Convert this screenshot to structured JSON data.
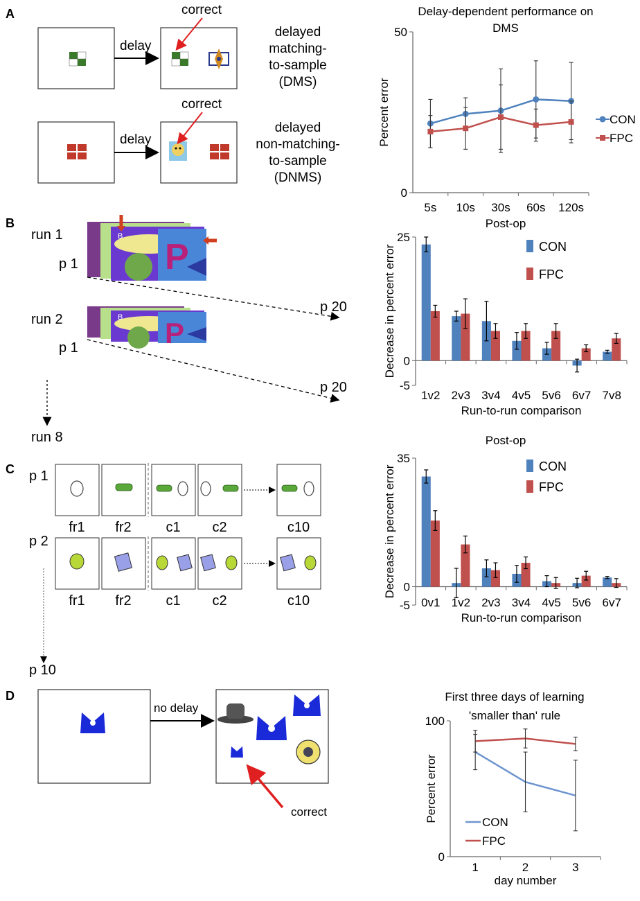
{
  "panel_labels": [
    "A",
    "B",
    "C",
    "D"
  ],
  "panelA": {
    "delay_label": "delay",
    "correct_label": "correct",
    "task1": [
      "delayed",
      "matching-",
      "to-sample",
      "(DMS)"
    ],
    "task2": [
      "delayed",
      "non-matching-",
      "to-sample",
      "(DNMS)"
    ]
  },
  "panelB": {
    "run1": "run 1",
    "run2": "run 2",
    "p1": "p 1",
    "p20": "p 20",
    "run8": "run 8",
    "card_letter": "B",
    "big_letter": "P"
  },
  "panelC": {
    "p1": "p 1",
    "p2": "p 2",
    "p10": "p 10",
    "frames": [
      "fr1",
      "fr2",
      "c1",
      "c2",
      "c10"
    ]
  },
  "panelD": {
    "no_delay": "no delay",
    "correct_label": "correct"
  },
  "colors": {
    "con": "#4f81bd",
    "fpc": "#c0504d",
    "con_light": "#6e95cf",
    "arrow_red": "#e02020"
  },
  "chart_data": [
    {
      "id": "dms",
      "type": "line",
      "title_lines": [
        "Delay-dependent performance on",
        "DMS"
      ],
      "categories": [
        "5s",
        "10s",
        "30s",
        "60s",
        "120s"
      ],
      "ylabel": "Percent error",
      "xlabel": "",
      "ylim": [
        0,
        50
      ],
      "yticks": [
        "0",
        "50"
      ],
      "series": [
        {
          "name": "CON",
          "values": [
            21.5,
            24.5,
            25.5,
            29,
            28.5
          ],
          "err": [
            7.5,
            5,
            13,
            12,
            12
          ]
        },
        {
          "name": "FPC",
          "values": [
            19,
            20,
            23.5,
            21,
            22
          ],
          "err": [
            5,
            6.5,
            10,
            5,
            6.5
          ]
        }
      ],
      "legend": "right"
    },
    {
      "id": "b",
      "type": "bar",
      "title_lines": [
        "Post-op"
      ],
      "categories": [
        "1v2",
        "2v3",
        "3v4",
        "4v5",
        "5v6",
        "6v7",
        "7v8"
      ],
      "ylabel": "Decrease in percent error",
      "xlabel": "Run-to-run comparison",
      "ylim": [
        -5,
        25
      ],
      "yticks": [
        "-5",
        "0",
        "25"
      ],
      "series": [
        {
          "name": "CON",
          "values": [
            23.5,
            9,
            8,
            4,
            2.5,
            -1,
            1.8
          ],
          "err": [
            1.5,
            1,
            4,
            1.7,
            1.2,
            1.3,
            0.3
          ]
        },
        {
          "name": "FPC",
          "values": [
            10,
            9.5,
            6,
            6,
            6,
            2.5,
            4.5
          ],
          "err": [
            1.2,
            3,
            1.5,
            1.5,
            1.5,
            0.7,
            1
          ]
        }
      ],
      "legend": "top-right"
    },
    {
      "id": "c",
      "type": "bar",
      "title_lines": [
        "Post-op"
      ],
      "categories": [
        "0v1",
        "1v2",
        "2v3",
        "3v4",
        "4v5",
        "5v6",
        "6v7"
      ],
      "ylabel": "Decrease in percent error",
      "xlabel": "Run-to-run comparison",
      "ylim": [
        -5,
        35
      ],
      "yticks": [
        "-5",
        "0",
        "35"
      ],
      "series": [
        {
          "name": "CON",
          "values": [
            30,
            1,
            5,
            3.5,
            1.5,
            1,
            2.5
          ],
          "err": [
            1.8,
            4,
            2.3,
            2.3,
            1.5,
            1.3,
            0.3
          ]
        },
        {
          "name": "FPC",
          "values": [
            18,
            11.5,
            4.5,
            6.5,
            1,
            3,
            1
          ],
          "err": [
            2.7,
            2.3,
            2,
            1.6,
            1.5,
            1.2,
            1.2
          ]
        }
      ],
      "legend": "top-right"
    },
    {
      "id": "d",
      "type": "line",
      "title_lines": [
        "First three days of learning",
        "'smaller than' rule"
      ],
      "categories": [
        "1",
        "2",
        "3"
      ],
      "ylabel": "Percent error",
      "xlabel": "day number",
      "ylim": [
        0,
        100
      ],
      "yticks": [
        "0",
        "100"
      ],
      "series": [
        {
          "name": "CON",
          "values": [
            77,
            55,
            45
          ],
          "err": [
            13,
            22,
            26
          ]
        },
        {
          "name": "FPC",
          "values": [
            85,
            87,
            83
          ],
          "err": [
            8,
            7,
            5
          ]
        }
      ],
      "legend": "bottom-left"
    }
  ]
}
